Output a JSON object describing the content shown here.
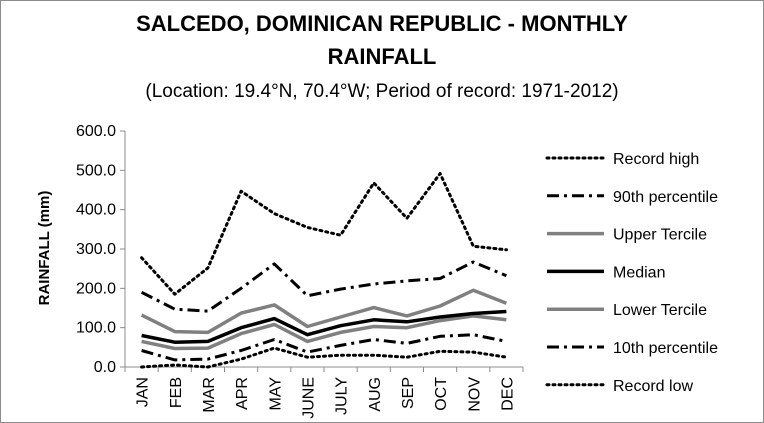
{
  "chart_data": {
    "type": "line",
    "title_lines": [
      "SALCEDO, DOMINICAN REPUBLIC - MONTHLY",
      "RAINFALL"
    ],
    "subtitle": "(Location: 19.4°N, 70.4°W; Period of record: 1971-2012)",
    "xlabel": "",
    "ylabel": "RAINFALL (mm)",
    "ylim": [
      0,
      600
    ],
    "yticks": [
      0,
      100,
      200,
      300,
      400,
      500,
      600
    ],
    "ytick_labels": [
      "0.0",
      "100.0",
      "200.0",
      "300.0",
      "400.0",
      "500.0",
      "600.0"
    ],
    "categories": [
      "JAN",
      "FEB",
      "MAR",
      "APR",
      "MAY",
      "JUNE",
      "JULY",
      "AUG",
      "SEP",
      "OCT",
      "NOV",
      "DEC"
    ],
    "grid": false,
    "legend_position": "right",
    "series": [
      {
        "name": "Record high",
        "color": "#000000",
        "style": "dotted",
        "width": 3,
        "values": [
          278,
          185,
          252,
          447,
          390,
          355,
          335,
          468,
          378,
          492,
          307,
          298
        ]
      },
      {
        "name": "90th percentile",
        "color": "#000000",
        "style": "dashdot",
        "width": 3,
        "values": [
          190,
          147,
          142,
          200,
          262,
          181,
          198,
          211,
          219,
          225,
          267,
          232
        ]
      },
      {
        "name": "Upper Tercile",
        "color": "#808080",
        "style": "solid",
        "width": 3.5,
        "values": [
          132,
          90,
          88,
          137,
          158,
          103,
          127,
          151,
          130,
          155,
          195,
          162
        ]
      },
      {
        "name": "Median",
        "color": "#000000",
        "style": "solid",
        "width": 3.5,
        "values": [
          80,
          63,
          65,
          100,
          123,
          82,
          105,
          120,
          115,
          127,
          136,
          141
        ]
      },
      {
        "name": "Lower Tercile",
        "color": "#808080",
        "style": "solid",
        "width": 3.5,
        "values": [
          65,
          47,
          48,
          85,
          108,
          65,
          88,
          103,
          100,
          118,
          130,
          120
        ]
      },
      {
        "name": "10th percentile",
        "color": "#000000",
        "style": "dashdot",
        "width": 3,
        "values": [
          42,
          18,
          20,
          42,
          70,
          38,
          55,
          70,
          60,
          78,
          82,
          65
        ]
      },
      {
        "name": "Record low",
        "color": "#000000",
        "style": "dotted",
        "width": 3,
        "values": [
          0,
          5,
          0,
          20,
          48,
          25,
          30,
          30,
          25,
          40,
          38,
          25
        ]
      }
    ]
  }
}
